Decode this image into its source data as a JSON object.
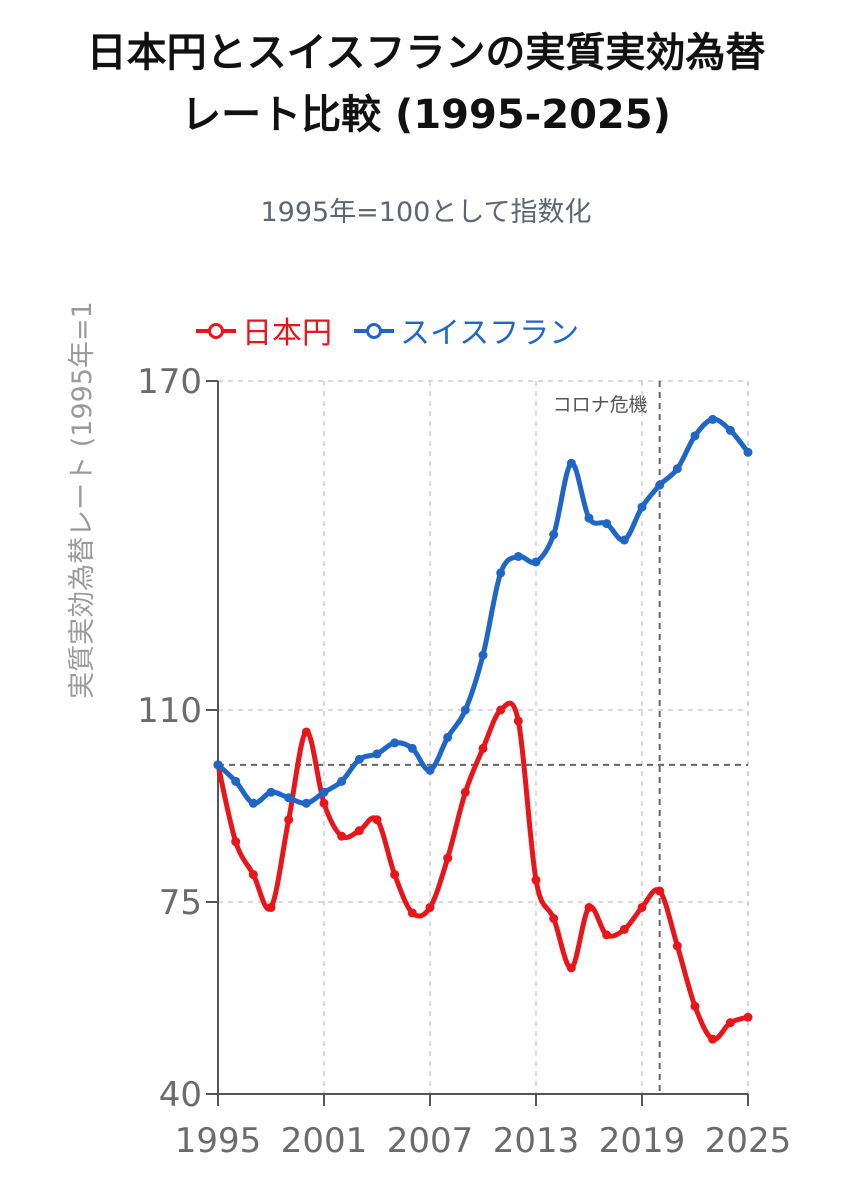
{
  "chart_data": {
    "type": "line",
    "title_line1": "日本円とスイスフランの実質実効為替",
    "title_line2": "レート比較 (1995-2025)",
    "subtitle": "1995年=100として指数化",
    "ylabel": "実質実効為替レート (1995年=1",
    "xlabel": "",
    "ylim": [
      40,
      170
    ],
    "yticks": [
      40,
      75,
      110,
      170
    ],
    "xlim": [
      1995,
      2025
    ],
    "xticks": [
      "1995",
      "2001",
      "2007",
      "2013",
      "2019",
      "2025"
    ],
    "reference_line": 100,
    "annotation": {
      "label": "コロナ危機",
      "x": 2020
    },
    "grid": true,
    "legend_position": "top-left",
    "series": [
      {
        "name": "日本円",
        "color": "#e8161b",
        "x": [
          1995,
          1996,
          1997,
          1998,
          1999,
          2000,
          2001,
          2002,
          2003,
          2004,
          2005,
          2006,
          2007,
          2008,
          2009,
          2010,
          2011,
          2012,
          2013,
          2014,
          2015,
          2016,
          2017,
          2018,
          2019,
          2020,
          2021,
          2022,
          2023,
          2024,
          2025
        ],
        "values": [
          100,
          86,
          80,
          74,
          90,
          106,
          93,
          87,
          88,
          90,
          80,
          73,
          74,
          83,
          95,
          103,
          110,
          108,
          79,
          72,
          63,
          74,
          69,
          70,
          74,
          77,
          67,
          56,
          50,
          53,
          54
        ]
      },
      {
        "name": "スイスフラン",
        "color": "#1f66c6",
        "x": [
          1995,
          1996,
          1997,
          1998,
          1999,
          2000,
          2001,
          2002,
          2003,
          2004,
          2005,
          2006,
          2007,
          2008,
          2009,
          2010,
          2011,
          2012,
          2013,
          2014,
          2015,
          2016,
          2017,
          2018,
          2019,
          2020,
          2021,
          2022,
          2023,
          2024,
          2025
        ],
        "values": [
          100,
          97,
          93,
          95,
          94,
          93,
          95,
          97,
          101,
          102,
          104,
          103,
          99,
          105,
          110,
          120,
          135,
          138,
          137,
          142,
          155,
          145,
          144,
          141,
          147,
          151,
          154,
          160,
          163,
          161,
          157
        ]
      }
    ]
  }
}
